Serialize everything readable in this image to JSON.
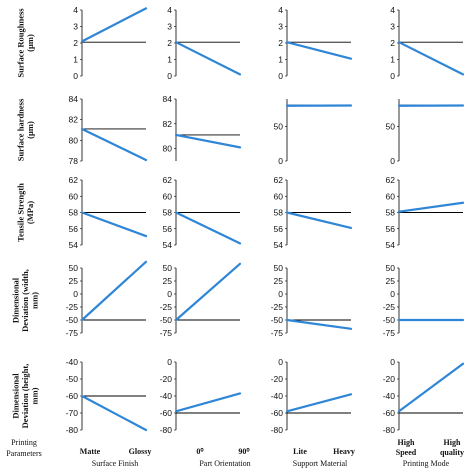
{
  "chart_data": {
    "type": "line",
    "group_labels": [
      "Surface Finish",
      "Part Orientation",
      "Support Material",
      "Printing Mode"
    ],
    "row_label_title": "Printing Parameters",
    "level_labels": [
      [
        "Matte",
        "Glossy"
      ],
      [
        "0⁰",
        "90⁰"
      ],
      [
        "Lite",
        "Heavy"
      ],
      [
        "High Speed",
        "High quality"
      ]
    ],
    "row_ylabels": [
      [
        "Surface Roughness",
        "(µm)"
      ],
      [
        "Surface hardness",
        "(µm)"
      ],
      [
        "Tensile Strength",
        "(MPa)"
      ],
      [
        "Dimensional",
        "Deviation (width,",
        "mm)"
      ],
      [
        "Dimensional",
        "Deviation (height,",
        "mm)"
      ]
    ],
    "reference_values": [
      2.05,
      81.1,
      58.0,
      -50,
      -60
    ],
    "rows": [
      {
        "yticks": [
          [
            0,
            1,
            2,
            3,
            4
          ],
          [
            0,
            1,
            2,
            3,
            4
          ],
          [
            0,
            1,
            2,
            3,
            4
          ],
          [
            0,
            1,
            2,
            3,
            4
          ]
        ],
        "ylims": [
          [
            0,
            4
          ],
          [
            0,
            4
          ],
          [
            0,
            4
          ],
          [
            0,
            4
          ]
        ],
        "values": [
          [
            2.1,
            4.1
          ],
          [
            2.05,
            0.1
          ],
          [
            2.05,
            1.05
          ],
          [
            2.05,
            0.1
          ]
        ]
      },
      {
        "yticks": [
          [
            78,
            80,
            82,
            84
          ],
          [
            80,
            82,
            84
          ],
          [
            50,
            0
          ],
          [
            50,
            0
          ]
        ],
        "ylims": [
          [
            78,
            84
          ],
          [
            79,
            84
          ],
          [
            0,
            90
          ],
          [
            0,
            90
          ]
        ],
        "values": [
          [
            81.1,
            78.1
          ],
          [
            81.1,
            80.1
          ],
          [
            80.2,
            80.6
          ],
          [
            80.2,
            80.6
          ]
        ]
      },
      {
        "yticks": [
          [
            54,
            56,
            58,
            60,
            62
          ],
          [
            54,
            56,
            58,
            60,
            62
          ],
          [
            54,
            56,
            58,
            60,
            62
          ],
          [
            54,
            56,
            58,
            60,
            62
          ]
        ],
        "ylims": [
          [
            54,
            62
          ],
          [
            54,
            62
          ],
          [
            54,
            62
          ],
          [
            54,
            62
          ]
        ],
        "values": [
          [
            58.0,
            55.1
          ],
          [
            58.0,
            54.2
          ],
          [
            58.0,
            56.1
          ],
          [
            58.1,
            59.2
          ]
        ]
      },
      {
        "yticks": [
          [
            50,
            25,
            0,
            -25,
            -50,
            -75
          ],
          [
            50,
            25,
            0,
            -25,
            -50,
            -75
          ],
          [
            50,
            25,
            0,
            -25,
            -50,
            -75
          ],
          [
            50,
            25,
            0,
            -25,
            -50,
            -75
          ]
        ],
        "ylims": [
          [
            -75,
            50
          ],
          [
            -75,
            50
          ],
          [
            -75,
            50
          ],
          [
            -75,
            50
          ]
        ],
        "values": [
          [
            -50,
            62
          ],
          [
            -50,
            58
          ],
          [
            -50,
            -67
          ],
          [
            -50,
            -50
          ]
        ]
      },
      {
        "yticks": [
          [
            -40,
            -50,
            -60,
            -70,
            -80
          ],
          [
            0,
            -20,
            -40,
            -60,
            -80
          ],
          [
            0,
            -20,
            -40,
            -60,
            -80
          ],
          [
            0,
            -20,
            -40,
            -60,
            -80
          ]
        ],
        "ylims": [
          [
            -80,
            -40
          ],
          [
            -80,
            0
          ],
          [
            -80,
            0
          ],
          [
            -80,
            0
          ]
        ],
        "values": [
          [
            -60,
            -80
          ],
          [
            -58,
            -37
          ],
          [
            -58,
            -38
          ],
          [
            -58,
            -2
          ]
        ]
      }
    ]
  },
  "colors": {
    "line": "#2f86d6",
    "axis": "#000000",
    "reference": "#000000"
  }
}
